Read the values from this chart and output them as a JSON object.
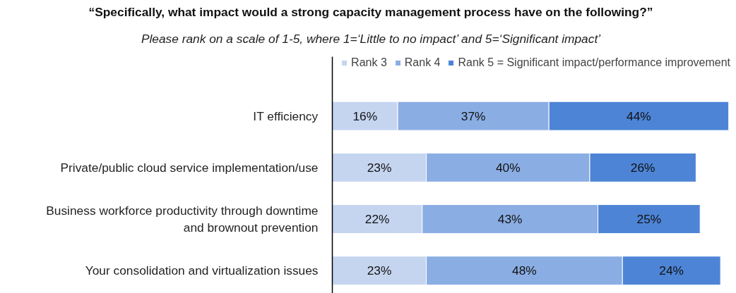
{
  "chart_data": {
    "type": "bar",
    "orientation": "horizontal",
    "stacked": true,
    "title": "“Specifically, what impact would a strong capacity management process have on the following?”",
    "subtitle": "Please rank on a scale of 1-5, where 1=‘Little to no impact’ and 5=‘Significant impact’",
    "categories": [
      "IT efficiency",
      "Private/public cloud service implementation/use",
      "Business workforce productivity through downtime and brownout prevention",
      "Your consolidation and virtualization issues"
    ],
    "series": [
      {
        "name": "Rank 3",
        "color": "#c5d5f0",
        "values": [
          16,
          23,
          22,
          23
        ],
        "value_labels": [
          "16%",
          "23%",
          "22%",
          "23%"
        ]
      },
      {
        "name": "Rank 4",
        "color": "#8aade3",
        "values": [
          37,
          40,
          43,
          48
        ],
        "value_labels": [
          "37%",
          "40%",
          "43%",
          "48%"
        ]
      },
      {
        "name": "Rank 5 = Significant impact/performance improvement",
        "color": "#4d84d6",
        "values": [
          44,
          26,
          25,
          24
        ],
        "value_labels": [
          "44%",
          "26%",
          "25%",
          "24%"
        ]
      }
    ],
    "legend": "top right",
    "grid": false
  }
}
